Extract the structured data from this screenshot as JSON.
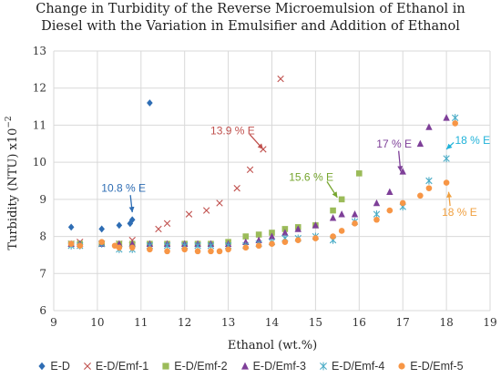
{
  "chart_data": {
    "type": "scatter",
    "title_lines": [
      "Change in Turbidity of the Reverse Microemulsion of Ethanol in",
      "Diesel with the Variation in Emulsifier and Addition of Ethanol"
    ],
    "xlabel": "Ethanol (wt.%)",
    "ylabel": "Turbidity (NTU) x10",
    "ylabel_exp": "−2",
    "xlim": [
      9,
      19
    ],
    "ylim": [
      6,
      13
    ],
    "xticks": [
      "9",
      "10",
      "11",
      "12",
      "13",
      "14",
      "15",
      "16",
      "17",
      "18",
      "19"
    ],
    "yticks": [
      "6",
      "7",
      "8",
      "9",
      "10",
      "11",
      "12",
      "13"
    ],
    "grid": true,
    "legend_position": "bottom",
    "series": [
      {
        "name": "E-D",
        "color": "#2E6DB4",
        "marker": "diamond",
        "x": [
          9.4,
          10.1,
          10.5,
          10.75,
          10.8,
          11.2
        ],
        "y": [
          8.25,
          8.2,
          8.3,
          8.35,
          8.45,
          11.6
        ]
      },
      {
        "name": "E-D/Emf-1",
        "color": "#C0504D",
        "marker": "x",
        "x": [
          9.4,
          9.6,
          10.1,
          10.5,
          10.8,
          11.4,
          11.6,
          12.1,
          12.5,
          12.8,
          13.2,
          13.5,
          13.8,
          14.2
        ],
        "y": [
          7.8,
          7.85,
          7.8,
          7.8,
          7.9,
          8.2,
          8.35,
          8.6,
          8.7,
          8.9,
          9.3,
          9.8,
          10.35,
          12.25
        ]
      },
      {
        "name": "E-D/Emf-2",
        "color": "#9BBB59",
        "marker": "square",
        "x": [
          9.4,
          9.6,
          10.1,
          10.5,
          10.8,
          11.2,
          11.6,
          12.0,
          12.3,
          12.6,
          13.0,
          13.4,
          13.7,
          14.0,
          14.3,
          14.6,
          15.0,
          15.4,
          15.6,
          16.0
        ],
        "y": [
          7.8,
          7.8,
          7.8,
          7.8,
          7.8,
          7.8,
          7.8,
          7.8,
          7.8,
          7.8,
          7.85,
          8.0,
          8.05,
          8.1,
          8.2,
          8.25,
          8.3,
          8.7,
          9.0,
          9.7
        ]
      },
      {
        "name": "E-D/Emf-3",
        "color": "#7E3F98",
        "marker": "triangle",
        "x": [
          9.4,
          9.6,
          10.1,
          10.5,
          10.8,
          11.2,
          11.6,
          12.0,
          12.3,
          12.6,
          13.0,
          13.4,
          13.7,
          14.0,
          14.3,
          14.6,
          15.0,
          15.4,
          15.6,
          15.9,
          16.4,
          16.7,
          17.0,
          17.4,
          17.6,
          18.0
        ],
        "y": [
          7.8,
          7.8,
          7.8,
          7.8,
          7.8,
          7.8,
          7.8,
          7.8,
          7.8,
          7.8,
          7.8,
          7.85,
          7.9,
          8.0,
          8.1,
          8.2,
          8.3,
          8.5,
          8.6,
          8.6,
          8.9,
          9.2,
          9.75,
          10.5,
          10.95,
          11.2
        ]
      },
      {
        "name": "E-D/Emf-4",
        "color": "#4BACC6",
        "marker": "star",
        "x": [
          9.4,
          9.6,
          10.1,
          10.5,
          10.8,
          11.2,
          11.6,
          12.0,
          12.3,
          12.6,
          13.0,
          13.4,
          13.7,
          14.0,
          14.3,
          14.6,
          15.0,
          15.4,
          15.9,
          16.4,
          17.0,
          17.6,
          18.0,
          18.2
        ],
        "y": [
          7.75,
          7.75,
          7.8,
          7.65,
          7.65,
          7.75,
          7.75,
          7.75,
          7.75,
          7.75,
          7.75,
          7.75,
          7.8,
          7.85,
          7.95,
          7.95,
          8.0,
          7.9,
          8.4,
          8.6,
          8.8,
          9.5,
          10.1,
          11.2
        ]
      },
      {
        "name": "E-D/Emf-5",
        "color": "#F79646",
        "marker": "circle",
        "x": [
          9.4,
          9.6,
          10.1,
          10.4,
          10.5,
          10.8,
          11.2,
          11.6,
          12.0,
          12.3,
          12.6,
          12.8,
          13.0,
          13.4,
          13.7,
          14.0,
          14.3,
          14.6,
          15.0,
          15.4,
          15.6,
          15.9,
          16.4,
          16.7,
          17.0,
          17.4,
          17.6,
          18.0,
          18.2
        ],
        "y": [
          7.8,
          7.75,
          7.85,
          7.75,
          7.7,
          7.7,
          7.65,
          7.6,
          7.65,
          7.6,
          7.6,
          7.6,
          7.65,
          7.7,
          7.75,
          7.8,
          7.85,
          7.9,
          7.95,
          8.0,
          8.15,
          8.35,
          8.45,
          8.7,
          8.9,
          9.1,
          9.3,
          9.45,
          11.05
        ]
      }
    ],
    "annotations": [
      {
        "text": "10.8 % E",
        "color": "#2E6DB4",
        "x": 10.8,
        "y": 8.65,
        "text_x": 10.6,
        "text_y": 9.2
      },
      {
        "text": "13.9 % E",
        "color": "#C0504D",
        "x": 13.8,
        "y": 10.35,
        "text_x": 13.1,
        "text_y": 10.75
      },
      {
        "text": "15.6 % E",
        "color": "#76A52E",
        "x": 15.5,
        "y": 9.05,
        "text_x": 14.9,
        "text_y": 9.5
      },
      {
        "text": "17 % E",
        "color": "#7E3F98",
        "x": 16.95,
        "y": 9.75,
        "text_x": 16.8,
        "text_y": 10.4
      },
      {
        "text": "18 % E",
        "color": "#1FB2D9",
        "x": 18.0,
        "y": 10.35,
        "text_x": 18.6,
        "text_y": 10.5
      },
      {
        "text": "18 % E",
        "color": "#F0A040",
        "x": 18.05,
        "y": 9.2,
        "text_x": 18.3,
        "text_y": 8.55
      }
    ]
  }
}
